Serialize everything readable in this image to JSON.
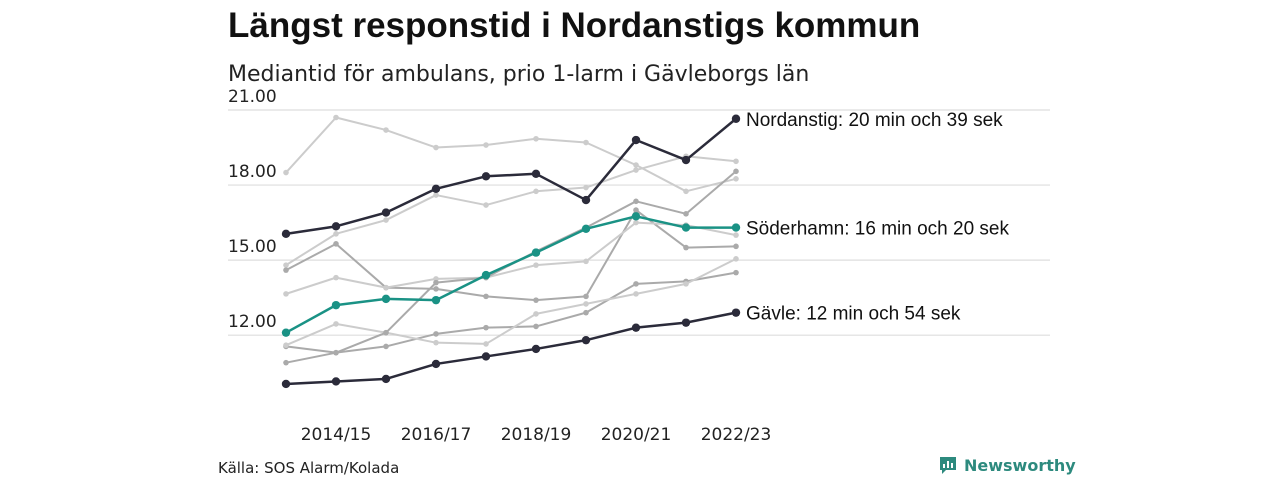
{
  "title": "Längst responstid i Nordanstigs kommun",
  "subtitle": "Mediantid för ambulans, prio 1-larm i Gävleborgs län",
  "source": "Källa: SOS Alarm/Kolada",
  "brand": "Newsworthy",
  "colors": {
    "background": "#ffffff",
    "grid": "#dddddd",
    "highlight_dark": "#2b2b3a",
    "highlight_teal": "#1a9285",
    "other_light": "#cccccc",
    "other_mid": "#aaaaaa",
    "brand": "#2d8a7e"
  },
  "chart_data": {
    "type": "line",
    "x": [
      "2013/14",
      "2014/15",
      "2015/16",
      "2016/17",
      "2017/18",
      "2018/19",
      "2019/20",
      "2020/21",
      "2021/22",
      "2022/23"
    ],
    "x_tick_labels": [
      "2014/15",
      "2016/17",
      "2018/19",
      "2020/21",
      "2022/23"
    ],
    "y_ticks": [
      "12.00",
      "15.00",
      "18.00",
      "21.00"
    ],
    "ylim": [
      10,
      21
    ],
    "grid": true,
    "series": [
      {
        "values": [
          18.5,
          20.7,
          20.2,
          19.5,
          19.6,
          19.85,
          19.7,
          18.8,
          17.75,
          18.25
        ],
        "color": "#cccccc",
        "width": 2
      },
      {
        "values": [
          14.8,
          16.05,
          16.6,
          17.6,
          17.2,
          17.75,
          17.9,
          18.6,
          19.15,
          18.95
        ],
        "color": "#cccccc",
        "width": 2
      },
      {
        "values": [
          14.6,
          15.65,
          13.9,
          13.85,
          13.55,
          13.4,
          13.55,
          17.0,
          15.5,
          15.55
        ],
        "color": "#aaaaaa",
        "width": 2
      },
      {
        "values": [
          13.65,
          14.3,
          13.9,
          14.25,
          14.3,
          14.8,
          14.95,
          16.5,
          16.4,
          16.0
        ],
        "color": "#cccccc",
        "width": 2
      },
      {
        "values": [
          11.55,
          11.3,
          11.55,
          12.05,
          12.3,
          12.35,
          12.9,
          14.05,
          14.15,
          14.5
        ],
        "color": "#aaaaaa",
        "width": 2
      },
      {
        "values": [
          11.6,
          12.45,
          12.1,
          11.7,
          11.65,
          12.85,
          13.25,
          13.65,
          14.05,
          15.05
        ],
        "color": "#cccccc",
        "width": 2
      },
      {
        "values": [
          10.9,
          11.3,
          12.1,
          14.1,
          14.3,
          15.35,
          16.3,
          17.35,
          16.85,
          18.55
        ],
        "color": "#aaaaaa",
        "width": 2
      },
      {
        "name": "Nordanstig: 20 min och 39 sek",
        "values": [
          16.05,
          16.35,
          16.9,
          17.85,
          18.35,
          18.45,
          17.4,
          19.8,
          19.0,
          20.65
        ],
        "color": "#2b2b3a",
        "width": 2.5,
        "highlight": true
      },
      {
        "name": "Söderhamn: 16 min och 20 sek",
        "values": [
          12.1,
          13.2,
          13.45,
          13.4,
          14.4,
          15.3,
          16.25,
          16.75,
          16.3,
          16.3
        ],
        "color": "#1a9285",
        "width": 2.5,
        "highlight": true
      },
      {
        "name": "Gävle: 12 min och 54 sek",
        "values": [
          10.05,
          10.15,
          10.25,
          10.85,
          11.15,
          11.45,
          11.8,
          12.3,
          12.5,
          12.9
        ],
        "color": "#2b2b3a",
        "width": 2.5,
        "highlight": true
      }
    ]
  }
}
